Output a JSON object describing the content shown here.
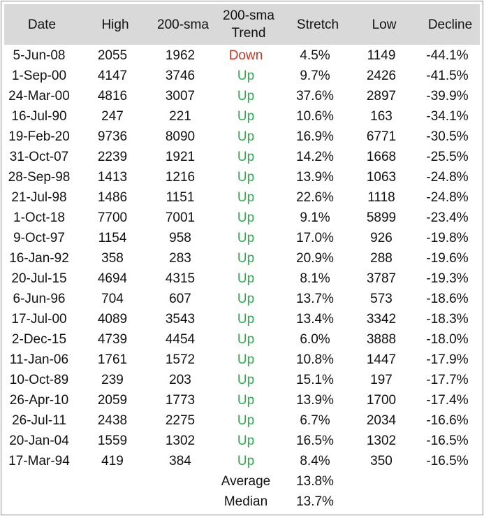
{
  "chart_data": {
    "type": "table",
    "columns": [
      "Date",
      "High",
      "200-sma",
      "200-sma Trend",
      "Stretch",
      "Low",
      "Decline"
    ],
    "header_lines": {
      "date": "Date",
      "high": "High",
      "sma": "200-sma",
      "trend_line1": "200-sma",
      "trend_line2": "Trend",
      "stretch": "Stretch",
      "low": "Low",
      "decline": "Decline"
    },
    "rows": [
      {
        "date": "5-Jun-08",
        "high": "2055",
        "sma": "1962",
        "trend": "Down",
        "stretch": "4.5%",
        "low": "1149",
        "decline": "-44.1%"
      },
      {
        "date": "1-Sep-00",
        "high": "4147",
        "sma": "3746",
        "trend": "Up",
        "stretch": "9.7%",
        "low": "2426",
        "decline": "-41.5%"
      },
      {
        "date": "24-Mar-00",
        "high": "4816",
        "sma": "3007",
        "trend": "Up",
        "stretch": "37.6%",
        "low": "2897",
        "decline": "-39.9%"
      },
      {
        "date": "16-Jul-90",
        "high": "247",
        "sma": "221",
        "trend": "Up",
        "stretch": "10.6%",
        "low": "163",
        "decline": "-34.1%"
      },
      {
        "date": "19-Feb-20",
        "high": "9736",
        "sma": "8090",
        "trend": "Up",
        "stretch": "16.9%",
        "low": "6771",
        "decline": "-30.5%"
      },
      {
        "date": "31-Oct-07",
        "high": "2239",
        "sma": "1921",
        "trend": "Up",
        "stretch": "14.2%",
        "low": "1668",
        "decline": "-25.5%"
      },
      {
        "date": "28-Sep-98",
        "high": "1413",
        "sma": "1216",
        "trend": "Up",
        "stretch": "13.9%",
        "low": "1063",
        "decline": "-24.8%"
      },
      {
        "date": "21-Jul-98",
        "high": "1486",
        "sma": "1151",
        "trend": "Up",
        "stretch": "22.6%",
        "low": "1118",
        "decline": "-24.8%"
      },
      {
        "date": "1-Oct-18",
        "high": "7700",
        "sma": "7001",
        "trend": "Up",
        "stretch": "9.1%",
        "low": "5899",
        "decline": "-23.4%"
      },
      {
        "date": "9-Oct-97",
        "high": "1154",
        "sma": "958",
        "trend": "Up",
        "stretch": "17.0%",
        "low": "926",
        "decline": "-19.8%"
      },
      {
        "date": "16-Jan-92",
        "high": "358",
        "sma": "283",
        "trend": "Up",
        "stretch": "20.9%",
        "low": "288",
        "decline": "-19.6%"
      },
      {
        "date": "20-Jul-15",
        "high": "4694",
        "sma": "4315",
        "trend": "Up",
        "stretch": "8.1%",
        "low": "3787",
        "decline": "-19.3%"
      },
      {
        "date": "6-Jun-96",
        "high": "704",
        "sma": "607",
        "trend": "Up",
        "stretch": "13.7%",
        "low": "573",
        "decline": "-18.6%"
      },
      {
        "date": "17-Jul-00",
        "high": "4089",
        "sma": "3543",
        "trend": "Up",
        "stretch": "13.4%",
        "low": "3342",
        "decline": "-18.3%"
      },
      {
        "date": "2-Dec-15",
        "high": "4739",
        "sma": "4454",
        "trend": "Up",
        "stretch": "6.0%",
        "low": "3888",
        "decline": "-18.0%"
      },
      {
        "date": "11-Jan-06",
        "high": "1761",
        "sma": "1572",
        "trend": "Up",
        "stretch": "10.8%",
        "low": "1447",
        "decline": "-17.9%"
      },
      {
        "date": "10-Oct-89",
        "high": "239",
        "sma": "203",
        "trend": "Up",
        "stretch": "15.1%",
        "low": "197",
        "decline": "-17.7%"
      },
      {
        "date": "26-Apr-10",
        "high": "2059",
        "sma": "1773",
        "trend": "Up",
        "stretch": "13.9%",
        "low": "1700",
        "decline": "-17.4%"
      },
      {
        "date": "26-Jul-11",
        "high": "2438",
        "sma": "2275",
        "trend": "Up",
        "stretch": "6.7%",
        "low": "2034",
        "decline": "-16.6%"
      },
      {
        "date": "20-Jan-04",
        "high": "1559",
        "sma": "1302",
        "trend": "Up",
        "stretch": "16.5%",
        "low": "1302",
        "decline": "-16.5%"
      },
      {
        "date": "17-Mar-94",
        "high": "419",
        "sma": "384",
        "trend": "Up",
        "stretch": "8.4%",
        "low": "350",
        "decline": "-16.5%"
      }
    ],
    "summary": [
      {
        "label": "Average",
        "stretch": "13.8%"
      },
      {
        "label": "Median",
        "stretch": "13.7%"
      }
    ]
  },
  "colors": {
    "header_background": "#d9d9d9",
    "trend_down": "#c0392b",
    "trend_up": "#2eaa4f",
    "text": "#111111",
    "border": "#8c8c8c"
  }
}
